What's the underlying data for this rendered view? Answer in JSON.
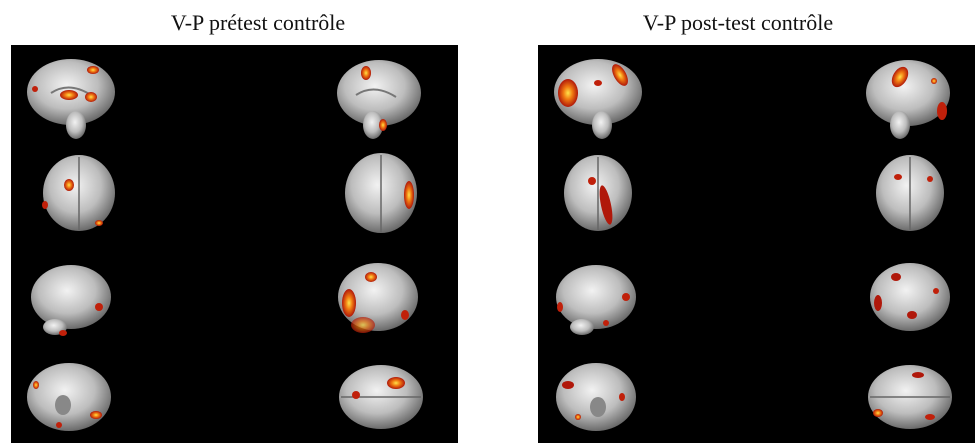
{
  "panels": [
    {
      "title": "V-P prétest contrôle"
    },
    {
      "title": "V-P post-test contrôle"
    }
  ],
  "colors": {
    "background": "#000000",
    "brain": "#c9c9c9",
    "activation_hot": "#ffd23a",
    "activation_mid": "#f07a12",
    "activation_low": "#c0200a",
    "activation_dark": "#6a0c05"
  },
  "views": [
    "sagittal-medial",
    "posterior",
    "lateral",
    "inferior"
  ]
}
